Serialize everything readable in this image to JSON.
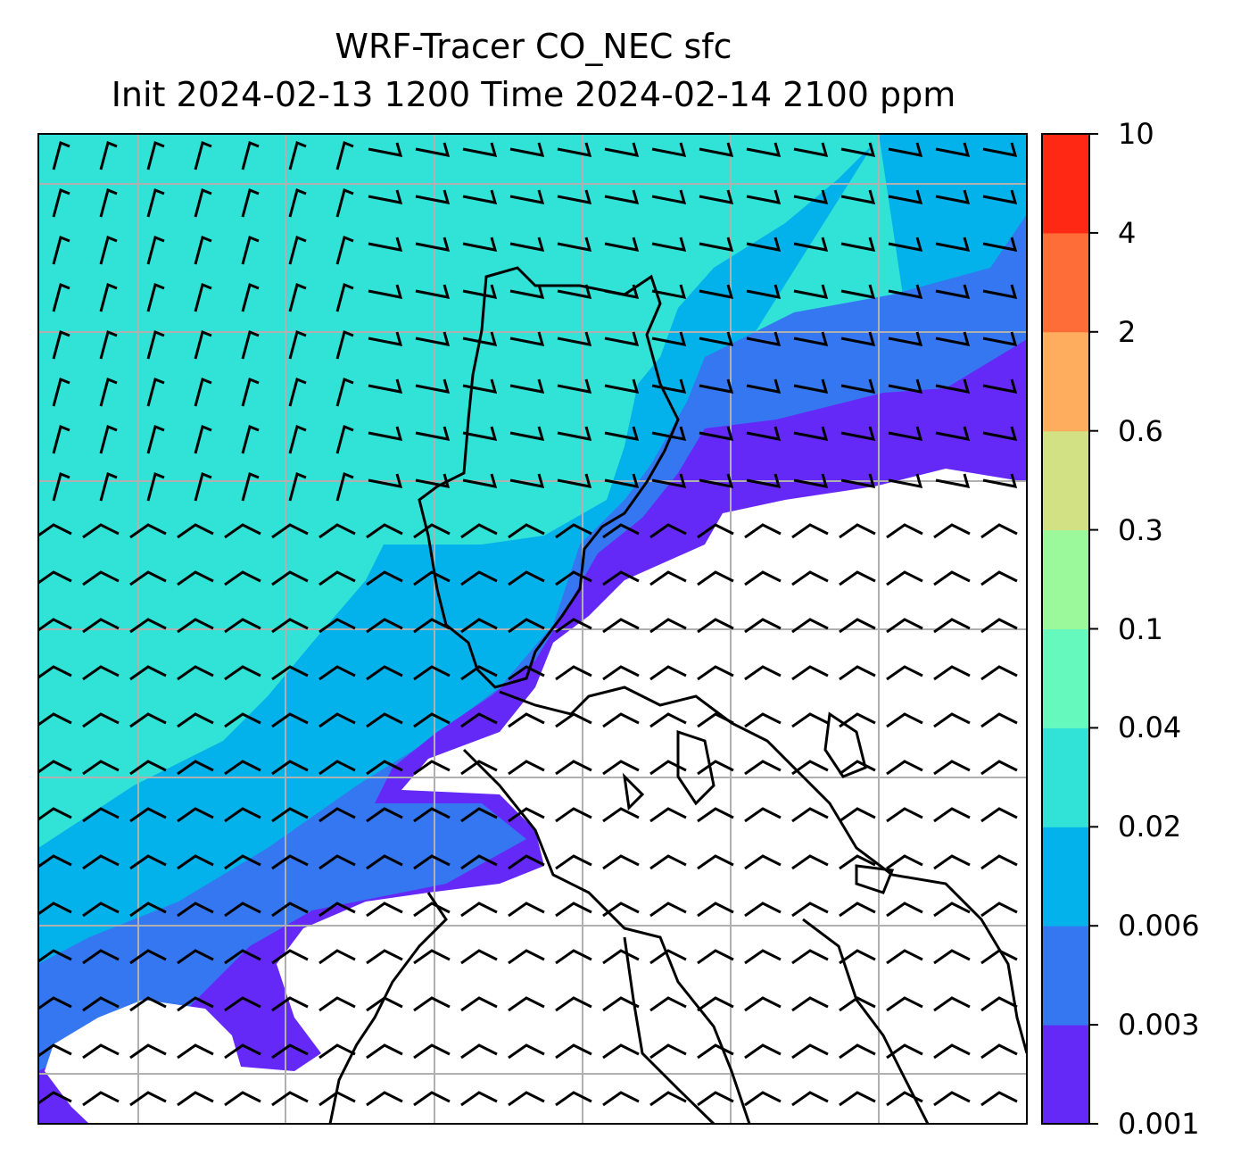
{
  "title": {
    "line1": "WRF-Tracer CO_NEC sfc",
    "line2": "Init 2024-02-13 1200 Time 2024-02-14 2100 ppm"
  },
  "colorbar": {
    "labels": [
      "0.001",
      "0.003",
      "0.006",
      "0.02",
      "0.04",
      "0.1",
      "0.3",
      "0.6",
      "2",
      "4",
      "10"
    ],
    "colors": [
      "#6529f7",
      "#3477f0",
      "#03b2ea",
      "#31e2d6",
      "#65f9be",
      "#9bf99c",
      "#d1e184",
      "#fead5f",
      "#fe6d37",
      "#fe2814"
    ]
  },
  "map_colors": {
    "background": "#ffffff",
    "coastline": "#000000",
    "gridline": "#b0b0b0",
    "barb": "#000000"
  }
}
